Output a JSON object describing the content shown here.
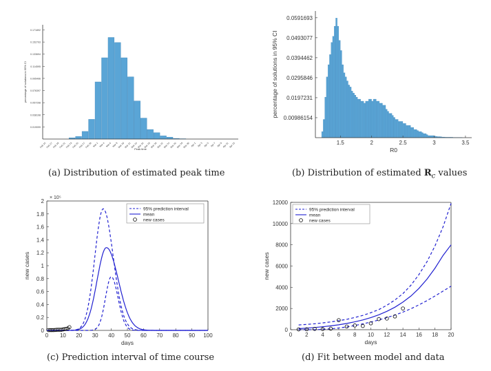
{
  "colors": {
    "bar": "#5aa5d6",
    "bar_edge": "#3e86ba",
    "line": "#1f1fd0",
    "axis": "#333333"
  },
  "captions": [
    {
      "id": "a",
      "prefix": "(a) ",
      "text": "Distribution of estimated peak time"
    },
    {
      "id": "b",
      "prefix": "(b) ",
      "text": "Distribution of estimated ",
      "bold": "R",
      "sub": "c",
      "suffix": " values"
    },
    {
      "id": "c",
      "prefix": "(c) ",
      "text": "Prediction interval of time course"
    },
    {
      "id": "d",
      "prefix": "(d) ",
      "text": "Fit between model and data"
    }
  ],
  "chart_data": [
    {
      "id": "a",
      "type": "bar",
      "xlabel": "Peak time",
      "ylabel": "percentage of solutions in 95% CI",
      "categories": [
        "Feb 15",
        "Feb 17",
        "Feb 19",
        "Feb 21",
        "Feb 23",
        "Feb 25",
        "Feb 27",
        "Feb 29",
        "Mar 2",
        "Mar 4",
        "Mar 6",
        "Mar 8",
        "Mar 10",
        "Mar 12",
        "Mar 14",
        "Mar 16",
        "Mar 18",
        "Mar 20",
        "Mar 22",
        "Mar 24",
        "Mar 26",
        "Mar 28",
        "Mar 30",
        "Apr 1",
        "Apr 3",
        "Apr 5",
        "Apr 7",
        "Apr 9",
        "Apr 11",
        "Apr 13"
      ],
      "values": [
        0,
        0,
        0,
        0,
        0.002,
        0.004,
        0.012,
        0.031,
        0.09,
        0.128,
        0.16,
        0.152,
        0.128,
        0.098,
        0.06,
        0.033,
        0.015,
        0.01,
        0.005,
        0.003,
        0.001,
        0.0005,
        0,
        0,
        0,
        0,
        0,
        0,
        0,
        0
      ],
      "yticks": [
        "0.019099",
        "0.038198",
        "0.057298",
        "0.076397",
        "0.095496",
        "0.114595",
        "0.133694",
        "0.152793",
        "0.171892"
      ],
      "ylim": [
        0,
        0.18
      ]
    },
    {
      "id": "b",
      "type": "bar",
      "xlabel": "R0",
      "ylabel": "percentage of solutions in 95% CI",
      "x_start": 1.2,
      "bin_width": 0.025,
      "values": [
        0.003,
        0.009,
        0.02,
        0.03,
        0.036,
        0.041,
        0.047,
        0.05,
        0.055,
        0.059,
        0.055,
        0.048,
        0.043,
        0.036,
        0.032,
        0.03,
        0.028,
        0.026,
        0.025,
        0.023,
        0.022,
        0.021,
        0.02,
        0.019,
        0.019,
        0.018,
        0.018,
        0.017,
        0.018,
        0.018,
        0.019,
        0.019,
        0.018,
        0.019,
        0.019,
        0.018,
        0.018,
        0.017,
        0.017,
        0.016,
        0.016,
        0.014,
        0.013,
        0.012,
        0.012,
        0.011,
        0.01,
        0.009,
        0.009,
        0.008,
        0.008,
        0.008,
        0.007,
        0.007,
        0.006,
        0.006,
        0.006,
        0.005,
        0.005,
        0.004,
        0.004,
        0.0035,
        0.003,
        0.003,
        0.0025,
        0.002,
        0.002,
        0.0015,
        0.001,
        0.001,
        0.001,
        0.001,
        0.0008,
        0.0006,
        0.0005,
        0.0005,
        0.0004,
        0.0003,
        0.0003,
        0.0002,
        0.0002,
        0.0002,
        0.0002,
        0.0002,
        0.0001,
        0.0001,
        0.0001,
        0.0001,
        0.0001,
        0.0001
      ],
      "xticks": [
        1.5,
        2,
        2.5,
        3,
        3.5
      ],
      "xlim": [
        1.1,
        3.6
      ],
      "yticks": [
        "0.00986154",
        "0.0197231",
        "0.0295846",
        "0.0394462",
        "0.0493077",
        "0.0591693"
      ],
      "ylim": [
        0,
        0.0625
      ]
    },
    {
      "id": "c",
      "type": "line",
      "xlabel": "days",
      "ylabel": "new cases",
      "y_exponent": "× 10⁵",
      "xlim": [
        0,
        100
      ],
      "ylim": [
        0,
        2
      ],
      "xticks": [
        0,
        10,
        20,
        30,
        40,
        50,
        60,
        70,
        80,
        90,
        100
      ],
      "yticks": [
        0,
        0.2,
        0.4,
        0.6,
        0.8,
        1,
        1.2,
        1.4,
        1.6,
        1.8,
        2
      ],
      "legend": [
        "95% prediction interval",
        "mean",
        "new cases"
      ],
      "series": [
        {
          "name": "95% prediction interval",
          "style": "dashed",
          "peak_x": 35,
          "peak_y": 1.88,
          "rise": 5.2,
          "fall": 6.2
        },
        {
          "name": "mean",
          "style": "solid",
          "peak_x": 37,
          "peak_y": 1.28,
          "rise": 5.8,
          "fall": 7.4
        },
        {
          "name": "95% prediction interval",
          "style": "dashed",
          "peak_x": 40,
          "peak_y": 0.83,
          "rise": 3.6,
          "fall": 4.2
        }
      ],
      "points": {
        "x": [
          1,
          2,
          3,
          4,
          5,
          6,
          7,
          8,
          9,
          10,
          11,
          12,
          13,
          14
        ],
        "y": [
          0.005,
          0.005,
          0.005,
          0.005,
          0.006,
          0.009,
          0.01,
          0.01,
          0.01,
          0.015,
          0.02,
          0.025,
          0.03,
          0.05
        ]
      }
    },
    {
      "id": "d",
      "type": "line",
      "xlabel": "days",
      "ylabel": "new cases",
      "xlim": [
        0,
        20
      ],
      "ylim": [
        0,
        12000
      ],
      "xticks": [
        0,
        2,
        4,
        6,
        8,
        10,
        12,
        14,
        16,
        18,
        20
      ],
      "yticks": [
        0,
        2000,
        4000,
        6000,
        8000,
        10000,
        12000
      ],
      "legend": [
        "95% prediction interval",
        "mean",
        "new cases"
      ],
      "x": [
        1,
        2,
        3,
        4,
        5,
        6,
        7,
        8,
        9,
        10,
        11,
        12,
        13,
        14,
        15,
        16,
        17,
        18,
        19,
        20
      ],
      "series": [
        {
          "name": "95% prediction interval",
          "style": "dashed",
          "values": [
            450,
            500,
            560,
            640,
            730,
            850,
            980,
            1150,
            1350,
            1600,
            1900,
            2300,
            2800,
            3400,
            4200,
            5200,
            6400,
            7900,
            9700,
            11900
          ]
        },
        {
          "name": "mean",
          "style": "solid",
          "values": [
            100,
            150,
            210,
            280,
            360,
            460,
            590,
            740,
            920,
            1140,
            1410,
            1730,
            2120,
            2600,
            3180,
            3900,
            4760,
            5800,
            7000,
            8000
          ]
        },
        {
          "name": "95% prediction interval",
          "style": "dashed",
          "values": [
            0,
            0,
            0,
            30,
            80,
            160,
            260,
            390,
            550,
            720,
            920,
            1140,
            1380,
            1660,
            1980,
            2340,
            2740,
            3180,
            3640,
            4100
          ]
        }
      ],
      "points": {
        "x": [
          1,
          2,
          3,
          4,
          5,
          6,
          7,
          8,
          9,
          10,
          11,
          12,
          13,
          14
        ],
        "y": [
          30,
          40,
          80,
          60,
          100,
          900,
          300,
          400,
          350,
          600,
          1000,
          1050,
          1250,
          2000
        ]
      }
    }
  ]
}
